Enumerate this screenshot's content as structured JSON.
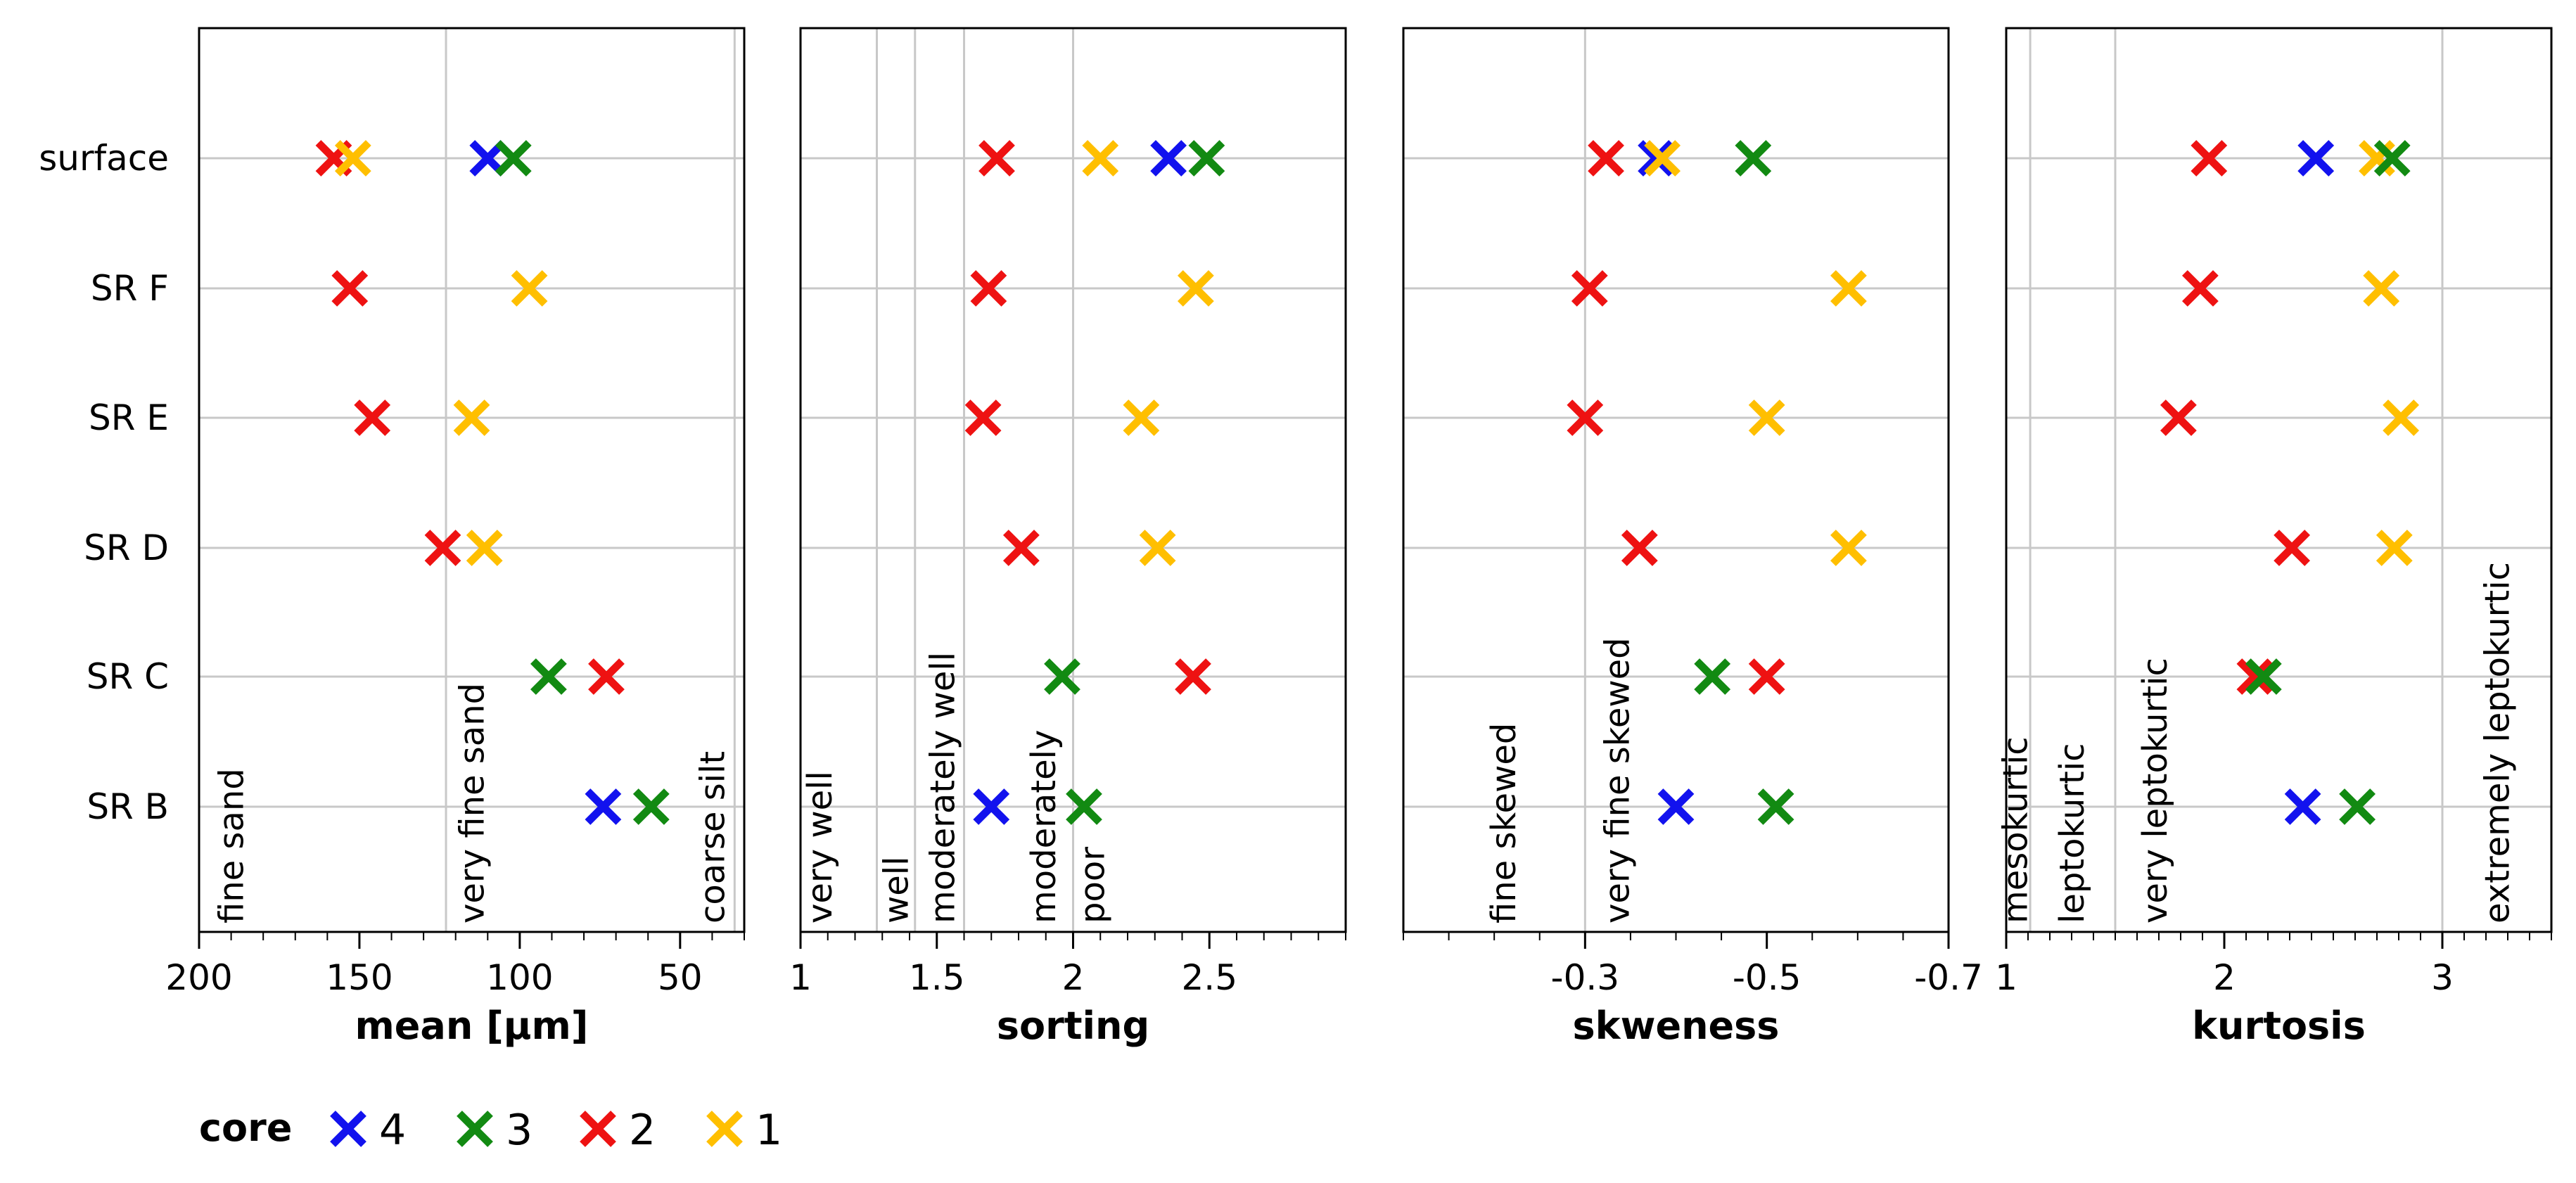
{
  "colors": {
    "4": "#1212ee",
    "3": "#128a12",
    "2": "#ee1212",
    "1": "#ffbf00"
  },
  "legend": {
    "title": "core",
    "entries": [
      "4",
      "3",
      "2",
      "1"
    ]
  },
  "chart_data": [
    {
      "type": "scatter",
      "xlabel": "mean [µm]",
      "xlim": [
        200,
        30
      ],
      "xticks": [
        "200",
        "150",
        "100",
        "50"
      ],
      "xtick_values": [
        200,
        150,
        100,
        50
      ],
      "grid_x": [
        123,
        33
      ],
      "categories": [
        "surface",
        "SR F",
        "SR E",
        "SR D",
        "SR C",
        "SR B"
      ],
      "class_labels": [
        {
          "text": "fine sand",
          "x": 190
        },
        {
          "text": "very fine sand",
          "x": 115
        },
        {
          "text": "coarse silt",
          "x": 40
        }
      ],
      "points": [
        {
          "core": "2",
          "category": "surface",
          "x": 158
        },
        {
          "core": "1",
          "category": "surface",
          "x": 152
        },
        {
          "core": "4",
          "category": "surface",
          "x": 110
        },
        {
          "core": "3",
          "category": "surface",
          "x": 102
        },
        {
          "core": "2",
          "category": "SR F",
          "x": 153
        },
        {
          "core": "1",
          "category": "SR F",
          "x": 97
        },
        {
          "core": "2",
          "category": "SR E",
          "x": 146
        },
        {
          "core": "1",
          "category": "SR E",
          "x": 115
        },
        {
          "core": "2",
          "category": "SR D",
          "x": 124
        },
        {
          "core": "1",
          "category": "SR D",
          "x": 111
        },
        {
          "core": "3",
          "category": "SR C",
          "x": 91
        },
        {
          "core": "2",
          "category": "SR C",
          "x": 73
        },
        {
          "core": "4",
          "category": "SR B",
          "x": 74
        },
        {
          "core": "3",
          "category": "SR B",
          "x": 59
        }
      ]
    },
    {
      "type": "scatter",
      "xlabel": "sorting",
      "xlim": [
        1,
        3
      ],
      "xticks": [
        "1",
        "1.5",
        "2",
        "2.5"
      ],
      "xtick_values": [
        1,
        1.5,
        2,
        2.5
      ],
      "grid_x": [
        1.28,
        1.42,
        1.6,
        2.0
      ],
      "categories": [
        "surface",
        "SR F",
        "SR E",
        "SR D",
        "SR C",
        "SR B"
      ],
      "class_labels": [
        {
          "text": "very well",
          "x": 1.07
        },
        {
          "text": "well",
          "x": 1.35
        },
        {
          "text": "moderately well",
          "x": 1.52
        },
        {
          "text": "moderately",
          "x": 1.89
        },
        {
          "text": "poor",
          "x": 2.07
        }
      ],
      "points": [
        {
          "core": "2",
          "category": "surface",
          "x": 1.72
        },
        {
          "core": "1",
          "category": "surface",
          "x": 2.1
        },
        {
          "core": "4",
          "category": "surface",
          "x": 2.35
        },
        {
          "core": "3",
          "category": "surface",
          "x": 2.49
        },
        {
          "core": "2",
          "category": "SR F",
          "x": 1.69
        },
        {
          "core": "1",
          "category": "SR F",
          "x": 2.45
        },
        {
          "core": "2",
          "category": "SR E",
          "x": 1.67
        },
        {
          "core": "1",
          "category": "SR E",
          "x": 2.25
        },
        {
          "core": "2",
          "category": "SR D",
          "x": 1.81
        },
        {
          "core": "1",
          "category": "SR D",
          "x": 2.31
        },
        {
          "core": "3",
          "category": "SR C",
          "x": 1.96
        },
        {
          "core": "2",
          "category": "SR C",
          "x": 2.44
        },
        {
          "core": "4",
          "category": "SR B",
          "x": 1.7
        },
        {
          "core": "3",
          "category": "SR B",
          "x": 2.04
        }
      ]
    },
    {
      "type": "scatter",
      "xlabel": "skweness",
      "xlim": [
        -0.1,
        -0.7
      ],
      "xticks": [
        "-0.3",
        "-0.5",
        "-0.7"
      ],
      "xtick_values": [
        -0.3,
        -0.5,
        -0.7
      ],
      "grid_x": [
        -0.3
      ],
      "categories": [
        "surface",
        "SR F",
        "SR E",
        "SR D",
        "SR C",
        "SR B"
      ],
      "class_labels": [
        {
          "text": "fine skewed",
          "x": -0.21
        },
        {
          "text": "very fine skewed",
          "x": -0.335
        }
      ],
      "points": [
        {
          "core": "2",
          "category": "surface",
          "x": -0.323
        },
        {
          "core": "4",
          "category": "surface",
          "x": -0.378
        },
        {
          "core": "1",
          "category": "surface",
          "x": -0.385
        },
        {
          "core": "3",
          "category": "surface",
          "x": -0.485
        },
        {
          "core": "2",
          "category": "SR F",
          "x": -0.305
        },
        {
          "core": "1",
          "category": "SR F",
          "x": -0.59
        },
        {
          "core": "2",
          "category": "SR E",
          "x": -0.3
        },
        {
          "core": "1",
          "category": "SR E",
          "x": -0.5
        },
        {
          "core": "2",
          "category": "SR D",
          "x": -0.36
        },
        {
          "core": "1",
          "category": "SR D",
          "x": -0.59
        },
        {
          "core": "3",
          "category": "SR C",
          "x": -0.44
        },
        {
          "core": "2",
          "category": "SR C",
          "x": -0.5
        },
        {
          "core": "4",
          "category": "SR B",
          "x": -0.4
        },
        {
          "core": "3",
          "category": "SR B",
          "x": -0.51
        }
      ]
    },
    {
      "type": "scatter",
      "xlabel": "kurtosis",
      "xlim": [
        1,
        3.5
      ],
      "xticks": [
        "1",
        "2",
        "3"
      ],
      "xtick_values": [
        1,
        2,
        3
      ],
      "grid_x": [
        1.11,
        1.5,
        3.0
      ],
      "categories": [
        "surface",
        "SR F",
        "SR E",
        "SR D",
        "SR C",
        "SR B"
      ],
      "class_labels": [
        {
          "text": "mesokurtic",
          "x": 1.04
        },
        {
          "text": "leptokurtic",
          "x": 1.3
        },
        {
          "text": "very leptokurtic",
          "x": 1.68
        },
        {
          "text": "extremely leptokurtic",
          "x": 3.25
        }
      ],
      "points": [
        {
          "core": "2",
          "category": "surface",
          "x": 1.93
        },
        {
          "core": "4",
          "category": "surface",
          "x": 2.42
        },
        {
          "core": "1",
          "category": "surface",
          "x": 2.7
        },
        {
          "core": "3",
          "category": "surface",
          "x": 2.77
        },
        {
          "core": "2",
          "category": "SR F",
          "x": 1.89
        },
        {
          "core": "1",
          "category": "SR F",
          "x": 2.72
        },
        {
          "core": "2",
          "category": "SR E",
          "x": 1.79
        },
        {
          "core": "1",
          "category": "SR E",
          "x": 2.81
        },
        {
          "core": "2",
          "category": "SR D",
          "x": 2.31
        },
        {
          "core": "1",
          "category": "SR D",
          "x": 2.78
        },
        {
          "core": "2",
          "category": "SR C",
          "x": 2.14
        },
        {
          "core": "3",
          "category": "SR C",
          "x": 2.18
        },
        {
          "core": "4",
          "category": "SR B",
          "x": 2.36
        },
        {
          "core": "3",
          "category": "SR B",
          "x": 2.61
        }
      ]
    }
  ]
}
